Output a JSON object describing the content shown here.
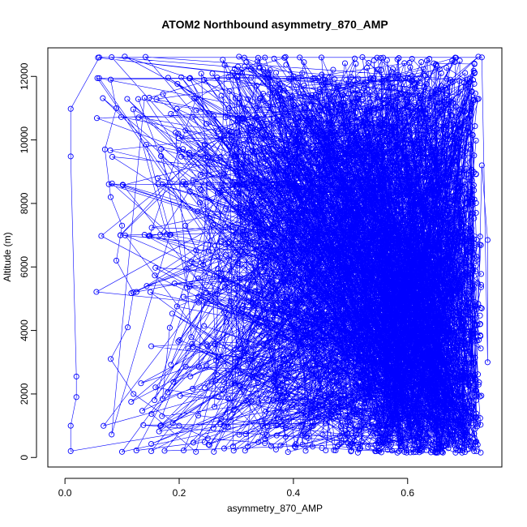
{
  "chart_data": {
    "type": "scatter",
    "title": "ATOM2 Northbound asymmetry_870_AMP",
    "xlabel": "asymmetry_870_AMP",
    "ylabel": "Altitude (m)",
    "xlim": [
      -0.03,
      0.765
    ],
    "ylim": [
      -300,
      12900
    ],
    "x_ticks": [
      0,
      0.2,
      0.4,
      0.6
    ],
    "x_tick_labels": [
      "0.0",
      "0.2",
      "0.4",
      "0.6"
    ],
    "y_ticks": [
      0,
      2000,
      4000,
      6000,
      8000,
      10000,
      12000
    ],
    "y_tick_labels": [
      "0",
      "2000",
      "4000",
      "6000",
      "8000",
      "10000",
      "12000"
    ],
    "grid": false,
    "markers": "open-circle",
    "connected": true,
    "color": "#0000ff",
    "series": [
      {
        "x_range": [
          0.01,
          0.74
        ],
        "y_range": [
          150,
          12600
        ],
        "sample_points": [
          [
            0.01,
            200
          ],
          [
            0.01,
            1000
          ],
          [
            0.02,
            1900
          ],
          [
            0.02,
            2550
          ],
          [
            0.01,
            9480
          ],
          [
            0.01,
            10980
          ],
          [
            0.06,
            12600
          ],
          [
            0.73,
            12600
          ],
          [
            0.74,
            3000
          ],
          [
            0.74,
            6850
          ],
          [
            0.73,
            9200
          ],
          [
            0.72,
            1800
          ],
          [
            0.7,
            700
          ],
          [
            0.65,
            150
          ],
          [
            0.55,
            200
          ],
          [
            0.45,
            300
          ],
          [
            0.35,
            450
          ],
          [
            0.25,
            600
          ],
          [
            0.2,
            1000
          ],
          [
            0.12,
            2000
          ],
          [
            0.08,
            3100
          ],
          [
            0.11,
            4100
          ],
          [
            0.12,
            5200
          ],
          [
            0.09,
            6200
          ],
          [
            0.1,
            7300
          ],
          [
            0.08,
            8200
          ],
          [
            0.07,
            9700
          ],
          [
            0.09,
            11000
          ],
          [
            0.08,
            11900
          ],
          [
            0.4,
            12000
          ],
          [
            0.6,
            11500
          ],
          [
            0.68,
            10500
          ],
          [
            0.69,
            8500
          ],
          [
            0.7,
            7000
          ],
          [
            0.71,
            5500
          ],
          [
            0.7,
            4000
          ],
          [
            0.66,
            2500
          ],
          [
            0.6,
            1000
          ],
          [
            0.5,
            400
          ],
          [
            0.35,
            6000
          ],
          [
            0.45,
            5000
          ],
          [
            0.55,
            7000
          ],
          [
            0.3,
            9000
          ],
          [
            0.5,
            10000
          ],
          [
            0.25,
            3500
          ]
        ]
      }
    ]
  }
}
